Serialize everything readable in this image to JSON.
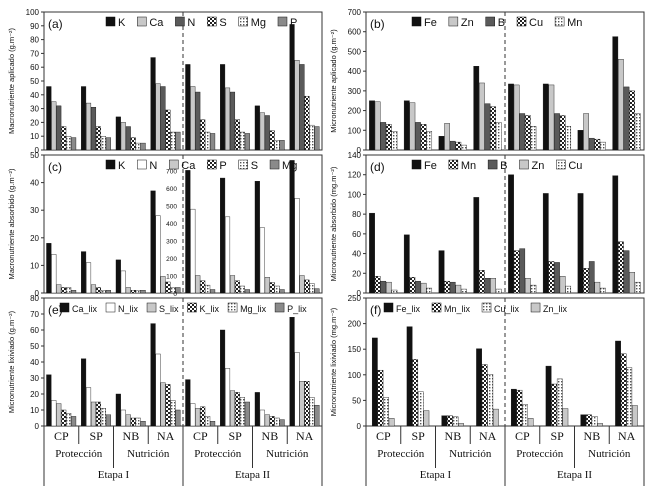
{
  "categories": [
    "CP",
    "SP",
    "NB",
    "NA",
    "CP",
    "SP",
    "NB",
    "NA"
  ],
  "groups": [
    "Protección",
    "Nutrición",
    "Protección",
    "Nutrición"
  ],
  "stages": [
    "Etapa I",
    "Etapa II"
  ],
  "chart_data": [
    {
      "id": "a",
      "type": "bar",
      "panel_label": "(a)",
      "ylabel": "Macronutriente aplicado (g.m⁻²)",
      "ylim": [
        0,
        100
      ],
      "yticks": [
        "0",
        "10",
        "20",
        "30",
        "40",
        "50",
        "60",
        "70",
        "80",
        "90",
        "100"
      ],
      "series": [
        {
          "name": "K",
          "pattern": "black",
          "values": [
            46,
            46,
            24,
            67,
            62,
            62,
            32,
            91
          ]
        },
        {
          "name": "Ca",
          "pattern": "lgray",
          "values": [
            35,
            34,
            20,
            48,
            46,
            45,
            27,
            65
          ]
        },
        {
          "name": "N",
          "pattern": "dgray",
          "values": [
            32,
            31,
            17,
            46,
            42,
            42,
            25,
            62
          ]
        },
        {
          "name": "S",
          "pattern": "check",
          "values": [
            17,
            17,
            9,
            29,
            22,
            22,
            14,
            39
          ]
        },
        {
          "name": "Mg",
          "pattern": "dots",
          "values": [
            10,
            10,
            5,
            13,
            13,
            13,
            7,
            18
          ]
        },
        {
          "name": "P",
          "pattern": "mgray",
          "values": [
            9,
            9,
            5,
            13,
            12,
            12,
            7,
            17
          ]
        }
      ]
    },
    {
      "id": "b",
      "type": "bar",
      "panel_label": "(b)",
      "ylabel": "Micronutriente aplicado (g.m⁻²)",
      "ylim": [
        0,
        700
      ],
      "yticks": [
        "0",
        "100",
        "200",
        "300",
        "400",
        "500",
        "600",
        "700"
      ],
      "series": [
        {
          "name": "Fe",
          "pattern": "black",
          "values": [
            250,
            250,
            70,
            425,
            335,
            335,
            100,
            575
          ]
        },
        {
          "name": "Zn",
          "pattern": "lgray",
          "values": [
            245,
            240,
            135,
            340,
            330,
            330,
            185,
            460
          ]
        },
        {
          "name": "B",
          "pattern": "dgray",
          "values": [
            140,
            140,
            45,
            235,
            185,
            185,
            60,
            320
          ]
        },
        {
          "name": "Cu",
          "pattern": "check",
          "values": [
            130,
            130,
            40,
            220,
            175,
            175,
            55,
            300
          ]
        },
        {
          "name": "Mn",
          "pattern": "dots",
          "values": [
            95,
            95,
            25,
            140,
            120,
            120,
            40,
            185
          ]
        }
      ]
    },
    {
      "id": "c",
      "type": "bar",
      "panel_label": "(c)",
      "ylabel": "Macronutriente absorbido (g.m⁻²)",
      "ylim": [
        0,
        50
      ],
      "yticks": [
        "0",
        "10",
        "20",
        "30",
        "40",
        "50"
      ],
      "series": [
        {
          "name": "K",
          "pattern": "black",
          "values": [
            18,
            15,
            12,
            37,
            702,
            658,
            640,
            759
          ]
        },
        {
          "name": "N",
          "pattern": "white",
          "values": [
            14,
            11,
            8,
            28,
            480,
            436,
            374,
            542
          ]
        },
        {
          "name": "Ca",
          "pattern": "lgray",
          "values": [
            3,
            3,
            2,
            6,
            100,
            100,
            90,
            100
          ]
        },
        {
          "name": "P",
          "pattern": "check",
          "values": [
            2,
            2,
            1,
            4,
            70,
            70,
            60,
            75
          ]
        },
        {
          "name": "S",
          "pattern": "dots",
          "values": [
            2,
            1,
            1,
            2,
            45,
            40,
            40,
            55
          ]
        },
        {
          "name": "Mg",
          "pattern": "mgray",
          "values": [
            1,
            1,
            1,
            2,
            20,
            20,
            20,
            25
          ]
        }
      ],
      "secondary_axis": {
        "ylim": [
          0,
          700
        ],
        "yticks": [
          "0",
          "100",
          "200",
          "300",
          "400",
          "500",
          "600",
          "700"
        ],
        "applies_to": "Etapa II"
      }
    },
    {
      "id": "d",
      "type": "bar",
      "panel_label": "(d)",
      "ylabel": "Micronutriente absorbido (mg.m⁻²)",
      "ylim": [
        0,
        140
      ],
      "yticks": [
        "0",
        "20",
        "40",
        "60",
        "80",
        "100",
        "120",
        "140"
      ],
      "series": [
        {
          "name": "Fe",
          "pattern": "black",
          "values": [
            81,
            59,
            43,
            97,
            120,
            101,
            101,
            119
          ]
        },
        {
          "name": "Mn",
          "pattern": "check",
          "values": [
            17,
            16,
            12,
            23,
            43,
            32,
            25,
            52
          ]
        },
        {
          "name": "B",
          "pattern": "dgray",
          "values": [
            12,
            12,
            11,
            15,
            45,
            31,
            32,
            43
          ]
        },
        {
          "name": "Zn",
          "pattern": "lgray",
          "values": [
            11,
            10,
            8,
            15,
            15,
            17,
            11,
            21
          ]
        },
        {
          "name": "Cu",
          "pattern": "dots",
          "values": [
            3,
            5,
            4,
            4,
            8,
            7,
            5,
            11
          ]
        }
      ]
    },
    {
      "id": "e",
      "type": "bar",
      "panel_label": "(e)",
      "ylabel": "Micronutriente lixiviado (g.m⁻²)",
      "ylim": [
        0,
        80
      ],
      "yticks": [
        "0",
        "10",
        "20",
        "30",
        "40",
        "50",
        "60",
        "70",
        "80"
      ],
      "series": [
        {
          "name": "Ca_lix",
          "pattern": "black",
          "values": [
            32,
            42,
            20,
            64,
            29,
            60,
            21,
            68
          ]
        },
        {
          "name": "N_lix",
          "pattern": "white",
          "values": [
            16,
            24,
            10,
            45,
            14,
            36,
            10,
            46
          ]
        },
        {
          "name": "S_lix",
          "pattern": "lgray",
          "values": [
            14,
            15,
            7,
            27,
            11,
            22,
            7,
            28
          ]
        },
        {
          "name": "K_lix",
          "pattern": "check",
          "values": [
            10,
            15,
            5,
            26,
            12,
            21,
            6,
            28
          ]
        },
        {
          "name": "Mg_lix",
          "pattern": "dots",
          "values": [
            8,
            11,
            5,
            16,
            6,
            18,
            5,
            18
          ]
        },
        {
          "name": "P_lix",
          "pattern": "mgray",
          "values": [
            6,
            7,
            3,
            10,
            3,
            15,
            4,
            13
          ]
        }
      ]
    },
    {
      "id": "f",
      "type": "bar",
      "panel_label": "(f)",
      "ylabel": "Micronutriente lixiviado (mg.m⁻²)",
      "ylim": [
        0,
        250
      ],
      "yticks": [
        "0",
        "50",
        "100",
        "150",
        "200",
        "250"
      ],
      "series": [
        {
          "name": "Fe_lix",
          "pattern": "black",
          "values": [
            172,
            194,
            20,
            151,
            72,
            117,
            22,
            166
          ]
        },
        {
          "name": "Mn_lix",
          "pattern": "check",
          "values": [
            109,
            130,
            20,
            120,
            70,
            82,
            22,
            141
          ]
        },
        {
          "name": "Cu_lix",
          "pattern": "dots",
          "values": [
            56,
            67,
            18,
            101,
            42,
            92,
            19,
            114
          ]
        },
        {
          "name": "Zn_lix",
          "pattern": "lgray",
          "values": [
            15,
            30,
            5,
            33,
            15,
            34,
            5,
            40
          ]
        }
      ]
    }
  ]
}
